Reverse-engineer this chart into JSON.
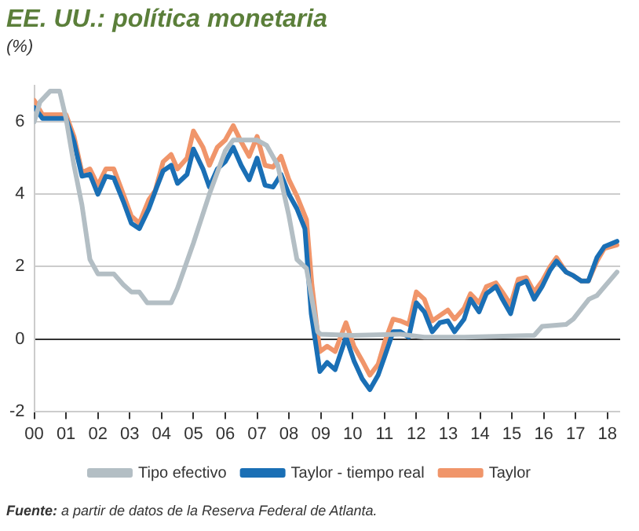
{
  "chart_data": {
    "type": "line",
    "title": "EE. UU.: política monetaria",
    "ylabel": "(%)",
    "annotations": [
      "Fuente: a partir de datos de la Reserva Federal de Atlanta."
    ],
    "xlim": [
      2000,
      2018.4
    ],
    "xticks": [
      {
        "value": 2000,
        "label": "00"
      },
      {
        "value": 2001,
        "label": "01"
      },
      {
        "value": 2002,
        "label": "02"
      },
      {
        "value": 2003,
        "label": "03"
      },
      {
        "value": 2004,
        "label": "04"
      },
      {
        "value": 2005,
        "label": "05"
      },
      {
        "value": 2006,
        "label": "06"
      },
      {
        "value": 2007,
        "label": "07"
      },
      {
        "value": 2008,
        "label": "08"
      },
      {
        "value": 2009,
        "label": "09"
      },
      {
        "value": 2010,
        "label": "10"
      },
      {
        "value": 2011,
        "label": "11"
      },
      {
        "value": 2012,
        "label": "12"
      },
      {
        "value": 2013,
        "label": "13"
      },
      {
        "value": 2014,
        "label": "14"
      },
      {
        "value": 2015,
        "label": "15"
      },
      {
        "value": 2016,
        "label": "16"
      },
      {
        "value": 2017,
        "label": "17"
      },
      {
        "value": 2018,
        "label": "18"
      }
    ],
    "ylim": [
      -2,
      7
    ],
    "yticks": [
      -2,
      0,
      2,
      4,
      6
    ],
    "grid": "y",
    "legend": "bottom",
    "marker": "none",
    "line_style": "solid",
    "series": [
      {
        "name": "Tipo efectivo",
        "color": "#b3bec4",
        "x": [
          2000,
          2000.18,
          2000.5,
          2000.8,
          2001,
          2001.25,
          2001.5,
          2001.75,
          2002,
          2002.5,
          2002.8,
          2003.05,
          2003.3,
          2003.55,
          2004.3,
          2004.5,
          2005,
          2005.5,
          2006,
          2006.25,
          2007,
          2007.3,
          2007.65,
          2008,
          2008.25,
          2008.55,
          2008.9,
          2009,
          2010,
          2011.5,
          2012.25,
          2013.5,
          2015.7,
          2015.95,
          2016.7,
          2016.93,
          2017.42,
          2017.67,
          2018.3
        ],
        "values": [
          6,
          6.55,
          6.85,
          6.85,
          6.1,
          4.8,
          3.7,
          2.2,
          1.8,
          1.8,
          1.5,
          1.3,
          1.3,
          1,
          1,
          1.4,
          2.65,
          4,
          5.2,
          5.5,
          5.5,
          5.35,
          4.8,
          3.4,
          2.2,
          1.95,
          0.2,
          0.13,
          0.1,
          0.13,
          0.05,
          0.05,
          0.1,
          0.35,
          0.4,
          0.55,
          1.1,
          1.2,
          1.85
        ]
      },
      {
        "name": "Taylor - tiempo real",
        "color": "#1a6fb5",
        "x": [
          2000,
          2000.26,
          2001,
          2001.25,
          2001.5,
          2001.75,
          2002,
          2002.25,
          2002.5,
          2002.8,
          2003.05,
          2003.3,
          2003.6,
          2003.85,
          2004.05,
          2004.3,
          2004.5,
          2004.8,
          2005,
          2005.3,
          2005.5,
          2005.75,
          2006,
          2006.25,
          2006.5,
          2006.75,
          2007,
          2007.25,
          2007.5,
          2007.75,
          2008,
          2008.25,
          2008.5,
          2008.7,
          2008.97,
          2009.2,
          2009.45,
          2009.79,
          2010.04,
          2010.3,
          2010.54,
          2010.8,
          2011,
          2011.27,
          2011.5,
          2011.76,
          2012,
          2012.25,
          2012.5,
          2012.74,
          2012.99,
          2013.2,
          2013.5,
          2013.7,
          2013.97,
          2014.2,
          2014.5,
          2014.7,
          2014.96,
          2015.2,
          2015.45,
          2015.7,
          2015.95,
          2016.2,
          2016.4,
          2016.7,
          2016.93,
          2017.18,
          2017.4,
          2017.67,
          2017.9,
          2018.3
        ],
        "values": [
          6.4,
          6.1,
          6.1,
          5.45,
          4.5,
          4.55,
          4,
          4.5,
          4.45,
          3.8,
          3.2,
          3.05,
          3.6,
          4.2,
          4.65,
          4.8,
          4.3,
          4.55,
          5.25,
          4.7,
          4.2,
          4.7,
          4.9,
          5.3,
          4.8,
          4.4,
          5,
          4.25,
          4.2,
          4.55,
          4,
          3.6,
          3.05,
          0.7,
          -0.9,
          -0.65,
          -0.85,
          0.05,
          -0.6,
          -1.1,
          -1.4,
          -1,
          -0.5,
          0.2,
          0.2,
          0.05,
          1,
          0.75,
          0.2,
          0.45,
          0.5,
          0.2,
          0.55,
          1.1,
          0.75,
          1.25,
          1.45,
          1.1,
          0.7,
          1.5,
          1.6,
          1.1,
          1.45,
          1.9,
          2.15,
          1.85,
          1.75,
          1.6,
          1.6,
          2.25,
          2.55,
          2.7
        ]
      },
      {
        "name": "Taylor",
        "color": "#f0956a",
        "x": [
          2000,
          2000.26,
          2001,
          2001.25,
          2001.5,
          2001.75,
          2002,
          2002.25,
          2002.5,
          2002.8,
          2003.05,
          2003.3,
          2003.6,
          2003.8,
          2004.05,
          2004.3,
          2004.5,
          2004.8,
          2005,
          2005.3,
          2005.5,
          2005.75,
          2006,
          2006.25,
          2006.5,
          2006.75,
          2007,
          2007.25,
          2007.5,
          2007.75,
          2008,
          2008.25,
          2008.55,
          2008.72,
          2008.97,
          2009.2,
          2009.45,
          2009.79,
          2010.04,
          2010.3,
          2010.54,
          2010.8,
          2011,
          2011.27,
          2011.5,
          2011.76,
          2012,
          2012.25,
          2012.5,
          2012.74,
          2012.99,
          2013.2,
          2013.5,
          2013.7,
          2013.97,
          2014.2,
          2014.5,
          2014.7,
          2014.96,
          2015.2,
          2015.45,
          2015.7,
          2015.95,
          2016.2,
          2016.4,
          2016.7,
          2016.93,
          2017.18,
          2017.4,
          2017.67,
          2017.9,
          2018.3
        ],
        "values": [
          6.6,
          6.2,
          6.2,
          5.6,
          4.6,
          4.7,
          4.25,
          4.7,
          4.7,
          4,
          3.4,
          3.2,
          3.85,
          4.1,
          4.9,
          5.1,
          4.7,
          5,
          5.75,
          5.3,
          4.8,
          5.3,
          5.5,
          5.9,
          5.45,
          5.05,
          5.6,
          4.8,
          4.75,
          5.05,
          4.4,
          3.95,
          3.3,
          1.5,
          -0.35,
          -0.2,
          -0.35,
          0.45,
          -0.2,
          -0.6,
          -1,
          -0.7,
          -0.1,
          0.55,
          0.5,
          0.4,
          1.3,
          1.1,
          0.5,
          0.65,
          0.8,
          0.55,
          0.85,
          1.25,
          1,
          1.45,
          1.55,
          1.3,
          0.95,
          1.65,
          1.7,
          1.3,
          1.6,
          2,
          2.25,
          1.85,
          1.75,
          1.6,
          1.6,
          2.15,
          2.5,
          2.6
        ]
      }
    ]
  }
}
